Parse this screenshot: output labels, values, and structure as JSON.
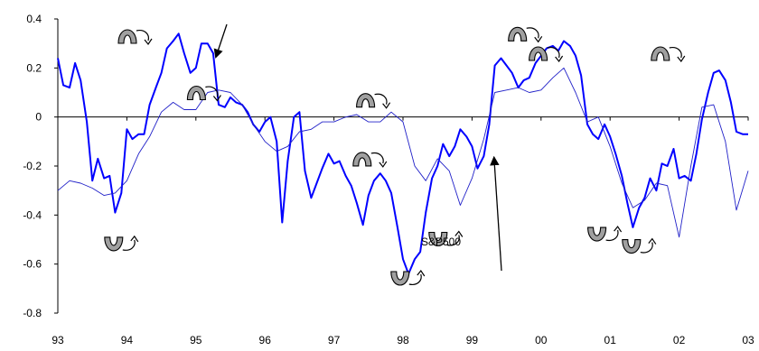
{
  "chart_data": {
    "type": "line",
    "title": "",
    "xlabel": "",
    "ylabel": "",
    "xlim": [
      1993,
      2003
    ],
    "ylim": [
      -0.8,
      0.4
    ],
    "grid": false,
    "legend": "none",
    "x_tick_labels": [
      "93",
      "94",
      "95",
      "96",
      "97",
      "98",
      "99",
      "00",
      "01",
      "02",
      "03"
    ],
    "y_tick_labels": [
      "0.4",
      "0.2",
      "0",
      "-0.2",
      "-0.4",
      "-0.6",
      "-0.8"
    ],
    "y_tick_values": [
      0.4,
      0.2,
      0,
      -0.2,
      -0.4,
      -0.6,
      -0.8
    ],
    "colors": {
      "thick": "#0000ff",
      "thin": "#2020c8",
      "axis": "#000000",
      "arrow": "#000000",
      "marker_fill": "#a0a0a0"
    },
    "annotations": [
      {
        "text": "S&P500"
      }
    ],
    "series": [
      {
        "style": "thick",
        "x": [
          1993.0,
          1993.08,
          1993.17,
          1993.25,
          1993.33,
          1993.42,
          1993.5,
          1993.58,
          1993.67,
          1993.75,
          1993.83,
          1993.92,
          1994.0,
          1994.08,
          1994.17,
          1994.25,
          1994.33,
          1994.42,
          1994.5,
          1994.58,
          1994.67,
          1994.75,
          1994.83,
          1994.92,
          1995.0,
          1995.08,
          1995.17,
          1995.25,
          1995.33,
          1995.42,
          1995.5,
          1995.58,
          1995.67,
          1995.75,
          1995.83,
          1995.92,
          1996.0,
          1996.08,
          1996.17,
          1996.25,
          1996.33,
          1996.42,
          1996.5,
          1996.58,
          1996.67,
          1996.75,
          1996.83,
          1996.92,
          1997.0,
          1997.08,
          1997.17,
          1997.25,
          1997.33,
          1997.42,
          1997.5,
          1997.58,
          1997.67,
          1997.75,
          1997.83,
          1997.92,
          1998.0,
          1998.08,
          1998.17,
          1998.25,
          1998.33,
          1998.42,
          1998.5,
          1998.58,
          1998.67,
          1998.75,
          1998.83,
          1998.92,
          1999.0,
          1999.08,
          1999.17,
          1999.25,
          1999.33,
          1999.42,
          1999.5,
          1999.58,
          1999.67,
          1999.75,
          1999.83,
          1999.92,
          2000.0,
          2000.08,
          2000.17,
          2000.25,
          2000.33,
          2000.42,
          2000.5,
          2000.58,
          2000.67,
          2000.75,
          2000.83,
          2000.92,
          2001.0,
          2001.08,
          2001.17,
          2001.25,
          2001.33,
          2001.42,
          2001.5,
          2001.58,
          2001.67,
          2001.75,
          2001.83,
          2001.92,
          2002.0,
          2002.08,
          2002.17,
          2002.25,
          2002.33,
          2002.42,
          2002.5,
          2002.58,
          2002.67,
          2002.75,
          2002.83,
          2002.92,
          2003.0
        ],
        "values": [
          0.24,
          0.13,
          0.12,
          0.22,
          0.15,
          -0.02,
          -0.26,
          -0.17,
          -0.25,
          -0.24,
          -0.39,
          -0.31,
          -0.05,
          -0.09,
          -0.07,
          -0.07,
          0.05,
          0.12,
          0.18,
          0.28,
          0.31,
          0.34,
          0.26,
          0.18,
          0.2,
          0.3,
          0.3,
          0.26,
          0.05,
          0.04,
          0.08,
          0.06,
          0.05,
          0.02,
          -0.03,
          -0.06,
          -0.02,
          0.0,
          -0.1,
          -0.43,
          -0.18,
          0.0,
          0.02,
          -0.22,
          -0.33,
          -0.27,
          -0.21,
          -0.15,
          -0.19,
          -0.18,
          -0.24,
          -0.28,
          -0.35,
          -0.44,
          -0.32,
          -0.26,
          -0.23,
          -0.26,
          -0.31,
          -0.45,
          -0.58,
          -0.64,
          -0.58,
          -0.55,
          -0.39,
          -0.25,
          -0.2,
          -0.11,
          -0.16,
          -0.12,
          -0.05,
          -0.08,
          -0.12,
          -0.21,
          -0.16,
          -0.03,
          0.21,
          0.24,
          0.21,
          0.18,
          0.12,
          0.15,
          0.16,
          0.22,
          0.25,
          0.28,
          0.29,
          0.27,
          0.31,
          0.29,
          0.25,
          0.17,
          -0.03,
          -0.07,
          -0.09,
          -0.03,
          -0.08,
          -0.15,
          -0.24,
          -0.35,
          -0.45,
          -0.37,
          -0.33,
          -0.25,
          -0.3,
          -0.19,
          -0.2,
          -0.13,
          -0.25,
          -0.24,
          -0.26,
          -0.15,
          -0.01,
          0.1,
          0.18,
          0.19,
          0.15,
          0.06,
          -0.06,
          -0.07,
          -0.07
        ]
      },
      {
        "style": "thin",
        "x": [
          1993.0,
          1993.17,
          1993.33,
          1993.5,
          1993.67,
          1993.83,
          1994.0,
          1994.17,
          1994.33,
          1994.5,
          1994.67,
          1994.83,
          1995.0,
          1995.17,
          1995.33,
          1995.5,
          1995.67,
          1995.83,
          1996.0,
          1996.17,
          1996.33,
          1996.5,
          1996.67,
          1996.83,
          1997.0,
          1997.17,
          1997.33,
          1997.5,
          1997.67,
          1997.83,
          1998.0,
          1998.17,
          1998.33,
          1998.5,
          1998.67,
          1998.83,
          1999.0,
          1999.17,
          1999.33,
          1999.5,
          1999.67,
          1999.83,
          2000.0,
          2000.17,
          2000.33,
          2000.5,
          2000.67,
          2000.83,
          2001.0,
          2001.17,
          2001.33,
          2001.5,
          2001.67,
          2001.83,
          2002.0,
          2002.17,
          2002.33,
          2002.5,
          2002.67,
          2002.83,
          2003.0
        ],
        "values": [
          -0.3,
          -0.26,
          -0.27,
          -0.29,
          -0.32,
          -0.31,
          -0.26,
          -0.15,
          -0.08,
          0.02,
          0.06,
          0.03,
          0.03,
          0.1,
          0.11,
          0.1,
          0.05,
          -0.03,
          -0.1,
          -0.14,
          -0.12,
          -0.06,
          -0.05,
          -0.02,
          -0.02,
          0.0,
          0.01,
          -0.02,
          -0.02,
          0.02,
          -0.02,
          -0.2,
          -0.26,
          -0.17,
          -0.22,
          -0.36,
          -0.25,
          -0.09,
          0.1,
          0.11,
          0.12,
          0.1,
          0.11,
          0.16,
          0.2,
          0.1,
          -0.02,
          0.0,
          -0.12,
          -0.27,
          -0.37,
          -0.34,
          -0.27,
          -0.28,
          -0.49,
          -0.2,
          0.04,
          0.05,
          -0.1,
          -0.38,
          -0.22
        ]
      }
    ],
    "markers": [
      {
        "type": "up",
        "x": 1994.1,
        "y": 0.33
      },
      {
        "type": "up",
        "x": 1995.1,
        "y": 0.1
      },
      {
        "type": "down",
        "x": 1993.9,
        "y": -0.52
      },
      {
        "type": "up",
        "x": 1997.55,
        "y": 0.07
      },
      {
        "type": "up",
        "x": 1997.5,
        "y": -0.17
      },
      {
        "type": "down",
        "x": 1998.05,
        "y": -0.66
      },
      {
        "type": "down",
        "x": 1998.6,
        "y": -0.5
      },
      {
        "type": "up",
        "x": 1999.75,
        "y": 0.34
      },
      {
        "type": "up",
        "x": 2000.05,
        "y": 0.26
      },
      {
        "type": "down",
        "x": 2000.9,
        "y": -0.48
      },
      {
        "type": "down",
        "x": 2001.4,
        "y": -0.53
      },
      {
        "type": "up",
        "x": 2001.82,
        "y": 0.26
      }
    ]
  }
}
